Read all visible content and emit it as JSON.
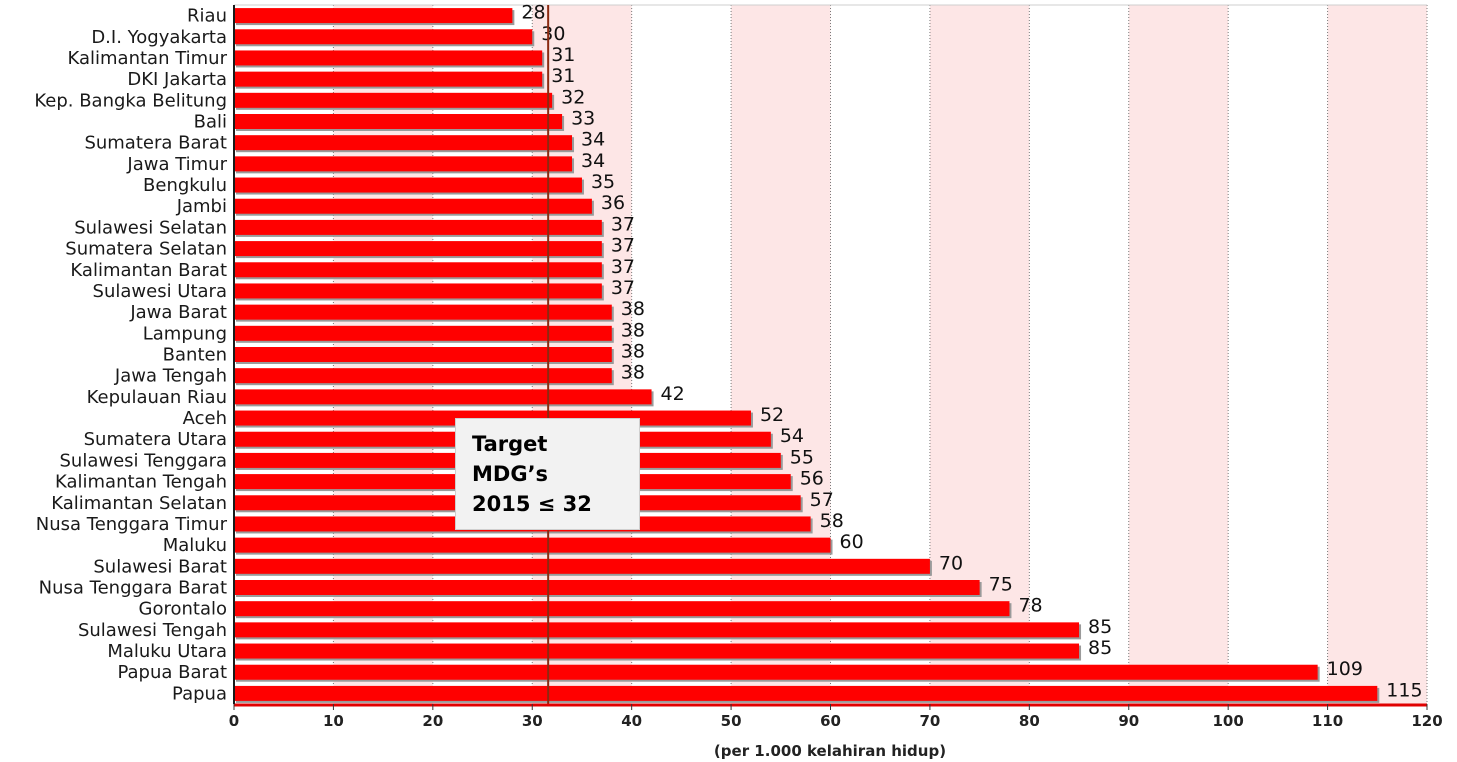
{
  "chart_data": {
    "type": "bar",
    "orientation": "horizontal",
    "categories": [
      "Riau",
      "D.I. Yogyakarta",
      "Kalimantan Timur",
      "DKI Jakarta",
      "Kep. Bangka Belitung",
      "Bali",
      "Sumatera Barat",
      "Jawa Timur",
      "Bengkulu",
      "Jambi",
      "Sulawesi Selatan",
      "Sumatera Selatan",
      "Kalimantan Barat",
      "Sulawesi Utara",
      "Jawa Barat",
      "Lampung",
      "Banten",
      "Jawa Tengah",
      "Kepulauan Riau",
      "Aceh",
      "Sumatera Utara",
      "Sulawesi Tenggara",
      "Kalimantan Tengah",
      "Kalimantan Selatan",
      "Nusa Tenggara Timur",
      "Maluku",
      "Sulawesi Barat",
      "Nusa Tenggara Barat",
      "Gorontalo",
      "Sulawesi Tengah",
      "Maluku Utara",
      "Papua Barat",
      "Papua"
    ],
    "values": [
      28,
      30,
      31,
      31,
      32,
      33,
      34,
      34,
      35,
      36,
      37,
      37,
      37,
      37,
      38,
      38,
      38,
      38,
      42,
      52,
      54,
      55,
      56,
      57,
      58,
      60,
      70,
      75,
      78,
      85,
      85,
      109,
      115
    ],
    "xlabel": "(per 1.000 kelahiran hidup)",
    "xlim": [
      0,
      120
    ],
    "ticks": [
      0,
      10,
      20,
      30,
      40,
      50,
      60,
      70,
      80,
      90,
      100,
      110,
      120
    ],
    "target_line": 31.6,
    "target_label": [
      "Target",
      "MDG’s",
      "2015 ≤ 32"
    ],
    "colors": {
      "bar": "#ff0000",
      "bar_shadow": "#9a9a9a",
      "band": "#fde6e6",
      "target_line": "#8b2a10",
      "axis": "#e00000"
    }
  }
}
